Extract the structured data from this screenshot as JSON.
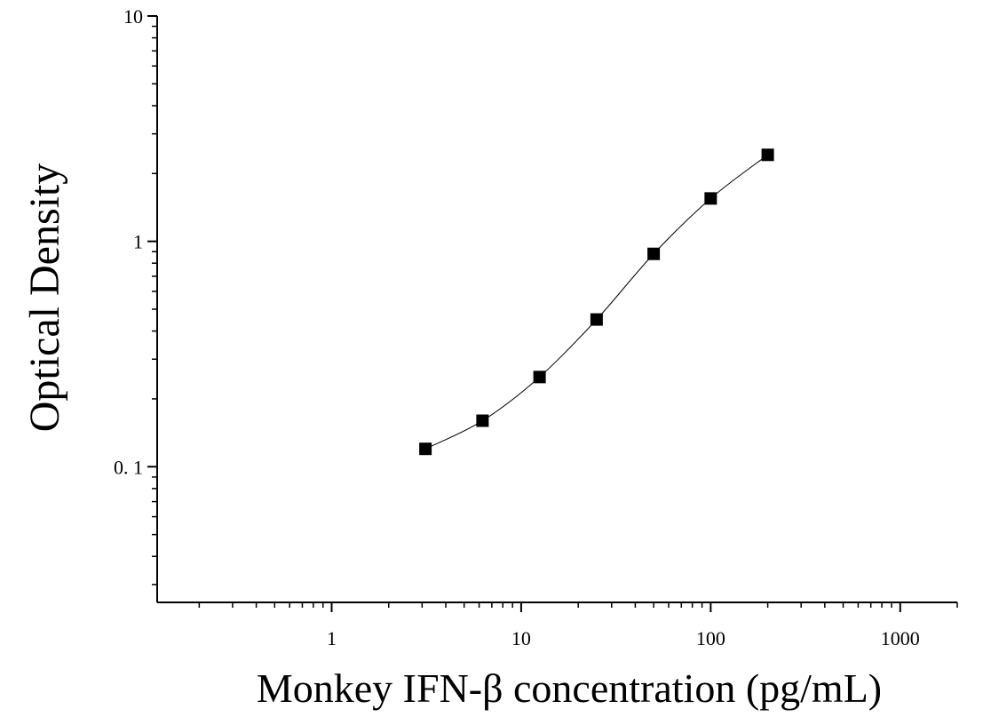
{
  "chart_data": {
    "type": "scatter",
    "xlabel": "Monkey IFN-β concentration (pg/mL)",
    "ylabel": "Optical Density",
    "x_scale": "log",
    "y_scale": "log",
    "xlim": [
      0.12,
      2000
    ],
    "ylim": [
      0.025,
      10
    ],
    "x_ticks": [
      {
        "value": 1,
        "label": "1"
      },
      {
        "value": 10,
        "label": "10"
      },
      {
        "value": 100,
        "label": "100"
      },
      {
        "value": 1000,
        "label": "1000"
      }
    ],
    "y_ticks": [
      {
        "value": 0.1,
        "label": "0. 1"
      },
      {
        "value": 1,
        "label": "1"
      },
      {
        "value": 10,
        "label": "10"
      }
    ],
    "grid": false,
    "legend": "none",
    "series": [
      {
        "x": [
          3.125,
          6.25,
          12.5,
          25,
          50,
          100,
          200
        ],
        "y": [
          0.12,
          0.16,
          0.25,
          0.45,
          0.88,
          1.55,
          2.42
        ],
        "marker": "square",
        "fit_line": true
      }
    ],
    "colors": {
      "marker": "#000000",
      "line": "#000000",
      "axis": "#000000"
    }
  }
}
